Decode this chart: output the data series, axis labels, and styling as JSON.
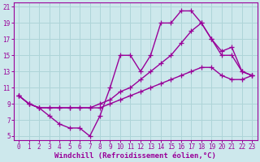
{
  "xlabel": "Windchill (Refroidissement éolien,°C)",
  "bg_color": "#cde8ec",
  "grid_color": "#aed4d8",
  "line_color": "#990099",
  "xlim": [
    -0.5,
    23.5
  ],
  "ylim": [
    4.5,
    21.5
  ],
  "yticks": [
    5,
    7,
    9,
    11,
    13,
    15,
    17,
    19,
    21
  ],
  "xticks": [
    0,
    1,
    2,
    3,
    4,
    5,
    6,
    7,
    8,
    9,
    10,
    11,
    12,
    13,
    14,
    15,
    16,
    17,
    18,
    19,
    20,
    21,
    22,
    23
  ],
  "line1_x": [
    0,
    1,
    2,
    3,
    4,
    5,
    6,
    7,
    8,
    9,
    10,
    11,
    12,
    13,
    14,
    15,
    16,
    17,
    18,
    19,
    20,
    21,
    22,
    23
  ],
  "line1_y": [
    10,
    9,
    8.5,
    7.5,
    6.5,
    6,
    6,
    5,
    7.5,
    11,
    15,
    15,
    13,
    15,
    19,
    19,
    20.5,
    20.5,
    19,
    17,
    15,
    15,
    13,
    12.5
  ],
  "line2_x": [
    0,
    1,
    2,
    3,
    4,
    5,
    6,
    7,
    8,
    9,
    10,
    11,
    12,
    13,
    14,
    15,
    16,
    17,
    18,
    19,
    20,
    21,
    22,
    23
  ],
  "line2_y": [
    10,
    9,
    8.5,
    8.5,
    8.5,
    8.5,
    8.5,
    8.5,
    8.5,
    9,
    9.5,
    10,
    10.5,
    11,
    11.5,
    12,
    12.5,
    13,
    13.5,
    13.5,
    12.5,
    12,
    12,
    12.5
  ],
  "line3_x": [
    0,
    1,
    2,
    3,
    4,
    5,
    6,
    7,
    8,
    9,
    10,
    11,
    12,
    13,
    14,
    15,
    16,
    17,
    18,
    19,
    20,
    21,
    22,
    23
  ],
  "line3_y": [
    10,
    9,
    8.5,
    8.5,
    8.5,
    8.5,
    8.5,
    8.5,
    9,
    9.5,
    10.5,
    11,
    12,
    13,
    14,
    15,
    16.5,
    18,
    19,
    17,
    15.5,
    16,
    13,
    12.5
  ],
  "marker": "+",
  "marker_size": 4,
  "linewidth": 1.0,
  "tick_fontsize": 5.5,
  "xlabel_fontsize": 6.5
}
